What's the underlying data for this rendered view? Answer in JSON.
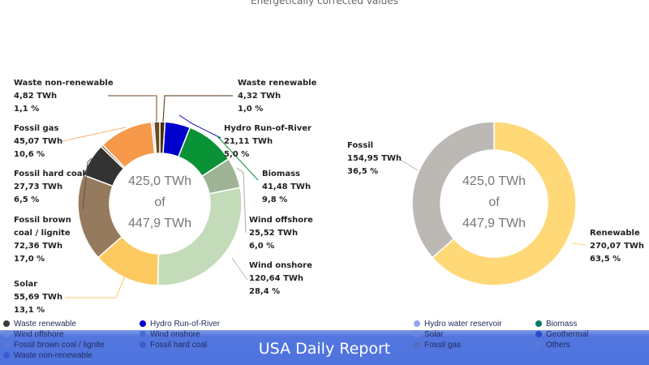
{
  "subtitle": "Energetically corrected values",
  "chart_data": [
    {
      "type": "pie",
      "variant": "donut",
      "unit": "TWh",
      "center_text": [
        "425,0 TWh",
        "of",
        "447,9 TWh"
      ],
      "slices": [
        {
          "name": "Waste renewable",
          "value": 4.32,
          "value_label": "4,32 TWh",
          "percent_label": "1,0 %",
          "color": "#4a2e0c"
        },
        {
          "name": "Hydro Run-of-River",
          "value": 21.11,
          "value_label": "21,11 TWh",
          "percent_label": "5,0 %",
          "color": "#0000cc"
        },
        {
          "name": "Biomass",
          "value": 41.48,
          "value_label": "41,48 TWh",
          "percent_label": "9,8 %",
          "color": "#0a9237"
        },
        {
          "name": "Wind offshore",
          "value": 25.52,
          "value_label": "25,52 TWh",
          "percent_label": "6,0 %",
          "color": "#9fb495"
        },
        {
          "name": "Wind onshore",
          "value": 120.64,
          "value_label": "120,64 TWh",
          "percent_label": "28,4 %",
          "color": "#c3dbb9"
        },
        {
          "name": "Solar",
          "value": 55.69,
          "value_label": "55,69 TWh",
          "percent_label": "13,1 %",
          "color": "#fdca62"
        },
        {
          "name": "Fossil brown coal / lignite",
          "value": 72.36,
          "value_label": "72,36 TWh",
          "percent_label": "17,0 %",
          "color": "#957a5d"
        },
        {
          "name": "Fossil hard coal",
          "value": 27.73,
          "value_label": "27,73 TWh",
          "percent_label": "6,5 %",
          "color": "#333333"
        },
        {
          "name": "",
          "value": 2.0,
          "color": "#8a6a50"
        },
        {
          "name": "Fossil gas",
          "value": 45.07,
          "value_label": "45,07 TWh",
          "percent_label": "10,6 %",
          "color": "#f7994a"
        },
        {
          "name": "",
          "value": 2.0,
          "color": "#cfd3e8"
        },
        {
          "name": "Waste non-renewable",
          "value": 4.82,
          "value_label": "4,82 TWh",
          "percent_label": "1,1 %",
          "color": "#6b4a1e"
        }
      ]
    },
    {
      "type": "pie",
      "variant": "donut",
      "unit": "TWh",
      "center_text": [
        "425,0 TWh",
        "of",
        "447,9 TWh"
      ],
      "slices": [
        {
          "name": "Renewable",
          "value": 270.07,
          "value_label": "270,07 TWh",
          "percent_label": "63,5 %",
          "color": "#ffd878"
        },
        {
          "name": "Fossil",
          "value": 154.95,
          "value_label": "154,95 TWh",
          "percent_label": "36,5 %",
          "color": "#bcb8b3"
        }
      ]
    }
  ],
  "legend": [
    {
      "label": "Waste renewable",
      "color": "#3a3a3a"
    },
    {
      "label": "Hydro Run-of-River",
      "color": "#0000cc"
    },
    {
      "label": "Hydro water reservoir",
      "color": "#8fa8ee"
    },
    {
      "label": "Biomass",
      "color": "#0a7a6a"
    },
    {
      "label": "Wind offshore",
      "color": "#6a86de"
    },
    {
      "label": "Wind onshore",
      "color": "#4a6ad8"
    },
    {
      "label": "Solar",
      "color": "#6a86de"
    },
    {
      "label": "Geothermal",
      "color": "#2a4ac8"
    },
    {
      "label": "Fossil brown coal / lignite",
      "color": "#5a78d8"
    },
    {
      "label": "Fossil hard coal",
      "color": "#3a5ad0"
    },
    {
      "label": "Fossil gas",
      "color": "#5a6ab8"
    },
    {
      "label": "Others",
      "color": "#5a78d8"
    },
    {
      "label": "Waste non-renewable",
      "color": "#3a5ad0"
    }
  ],
  "banner": {
    "title": "USA Daily Report",
    "color": "#3e66da"
  }
}
